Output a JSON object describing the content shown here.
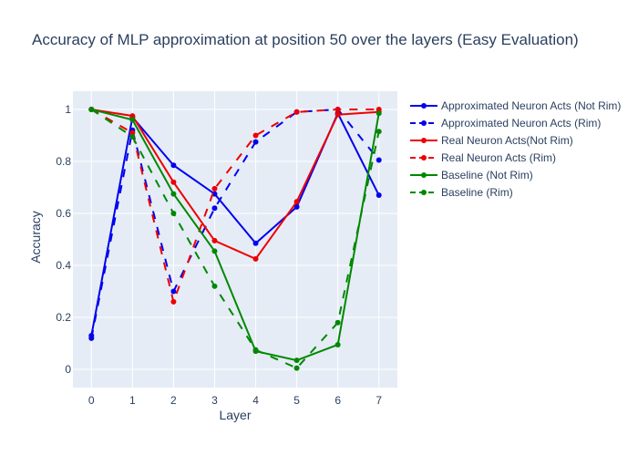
{
  "chart_data": {
    "type": "line",
    "title": "Accuracy of MLP approximation at position 50 over the layers (Easy Evaluation)",
    "xlabel": "Layer",
    "ylabel": "Accuracy",
    "x": [
      0,
      1,
      2,
      3,
      4,
      5,
      6,
      7
    ],
    "xlim": [
      -0.45,
      7.45
    ],
    "ylim": [
      -0.07,
      1.07
    ],
    "xticks": [
      "0",
      "1",
      "2",
      "3",
      "4",
      "5",
      "6",
      "7"
    ],
    "yticks": [
      "0",
      "0.2",
      "0.4",
      "0.6",
      "0.8",
      "1"
    ],
    "yticks_values": [
      0,
      0.2,
      0.4,
      0.6,
      0.8,
      1
    ],
    "grid": true,
    "legend_position": "right",
    "series": [
      {
        "name": "Approximated Neuron Acts (Not Rim)",
        "color": "#0000ee",
        "dash": "solid",
        "values": [
          0.13,
          0.97,
          0.785,
          0.675,
          0.485,
          0.625,
          0.985,
          0.67
        ]
      },
      {
        "name": "Approximated Neuron Acts (Rim)",
        "color": "#0000ee",
        "dash": "dash",
        "values": [
          0.12,
          0.92,
          0.3,
          0.62,
          0.875,
          0.99,
          1.0,
          0.805
        ]
      },
      {
        "name": "Real Neuron Acts(Not Rim)",
        "color": "#ee0000",
        "dash": "solid",
        "values": [
          1.0,
          0.975,
          0.72,
          0.495,
          0.425,
          0.645,
          0.98,
          0.99
        ]
      },
      {
        "name": "Real Neuron Acts (Rim)",
        "color": "#ee0000",
        "dash": "dash",
        "values": [
          1.0,
          0.91,
          0.26,
          0.695,
          0.9,
          0.99,
          1.0,
          1.0
        ]
      },
      {
        "name": "Baseline (Not Rim)",
        "color": "#008800",
        "dash": "solid",
        "values": [
          1.0,
          0.96,
          0.675,
          0.455,
          0.07,
          0.035,
          0.095,
          0.985
        ]
      },
      {
        "name": "Baseline (Rim)",
        "color": "#008800",
        "dash": "dash",
        "values": [
          1.0,
          0.895,
          0.6,
          0.32,
          0.075,
          0.005,
          0.18,
          0.915
        ]
      }
    ]
  }
}
